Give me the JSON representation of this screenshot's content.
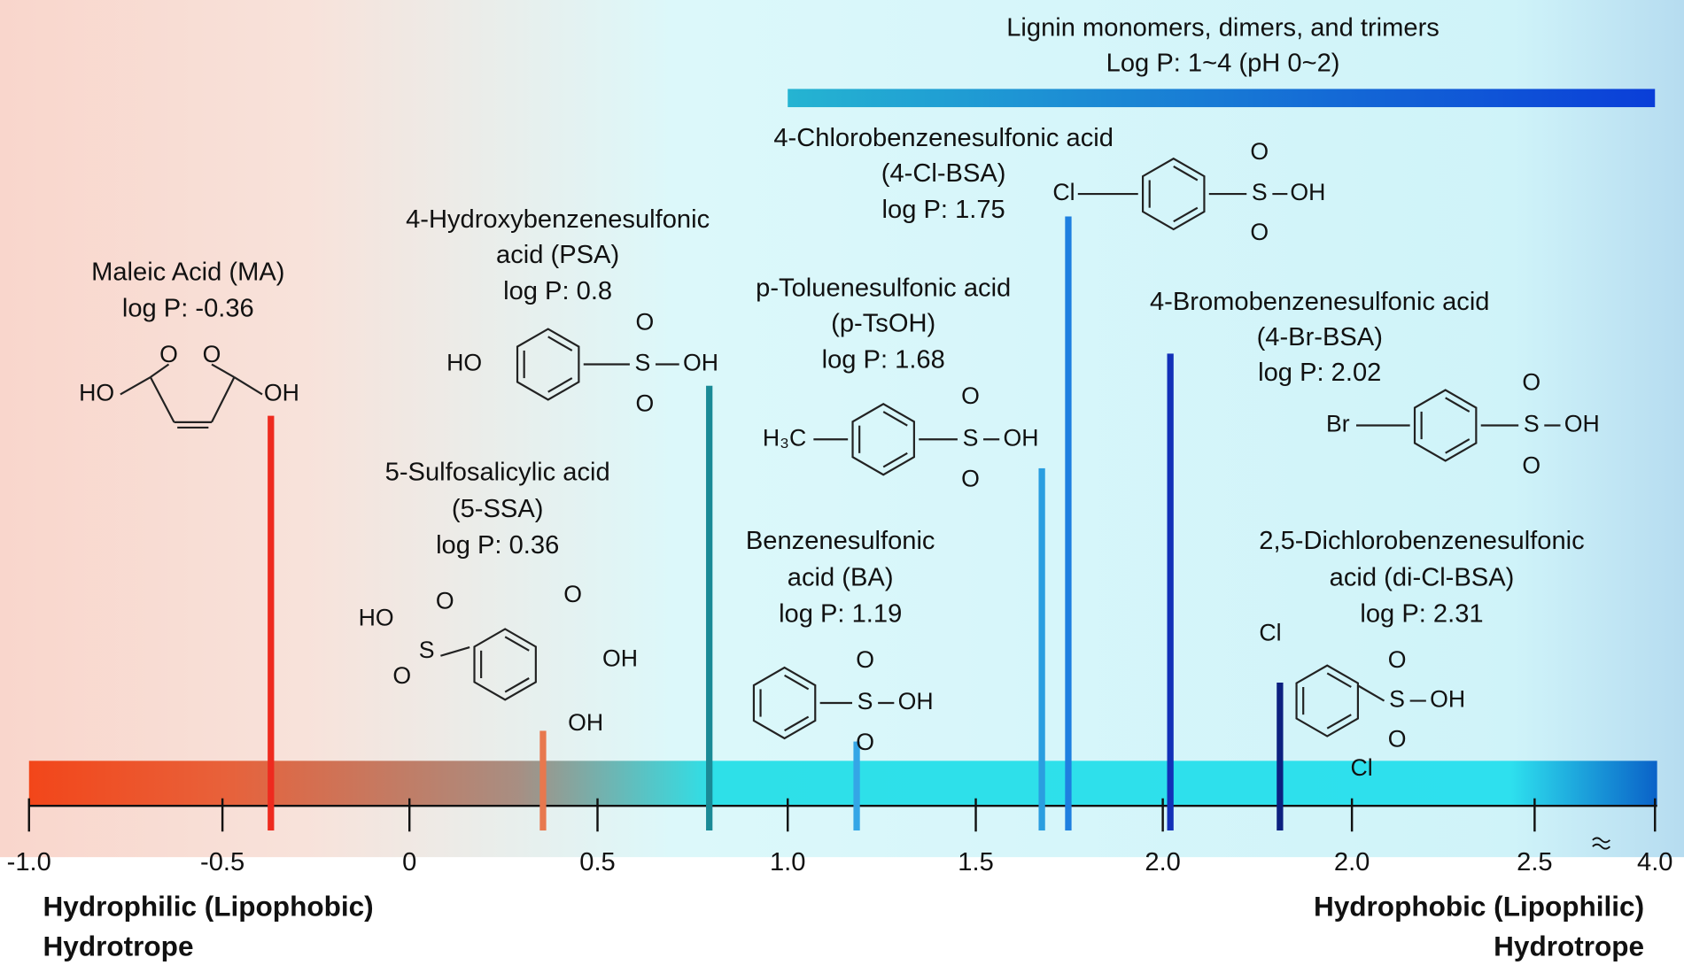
{
  "lignin": {
    "lines": [
      "Lignin monomers, dimers, and trimers",
      "Log P: 1~4  (pH 0~2)"
    ]
  },
  "compounds": [
    {
      "lines": [
        "Maleic Acid (MA)",
        "log P: -0.36"
      ],
      "log_p": -0.36,
      "color": "#ee2a1e",
      "structure": [
        "HO",
        "O",
        "O",
        "OH"
      ]
    },
    {
      "lines": [
        "5-Sulfosalicylic acid",
        "(5-SSA)",
        "log P: 0.36"
      ],
      "log_p": 0.36,
      "color": "#e8784e",
      "structure": [
        "HO",
        "S",
        "O",
        "O",
        "O",
        "OH",
        "OH"
      ]
    },
    {
      "lines": [
        "4-Hydroxybenzenesulfonic",
        "acid (PSA)",
        "log P: 0.8"
      ],
      "log_p": 0.8,
      "color": "#1a8a96",
      "structure": [
        "HO",
        "S",
        "O",
        "O",
        "OH"
      ]
    },
    {
      "lines": [
        "Benzenesulfonic",
        "acid (BA)",
        "log P: 1.19"
      ],
      "log_p": 1.19,
      "color": "#34a6e6",
      "structure": [
        "S",
        "O",
        "O",
        "OH"
      ]
    },
    {
      "lines": [
        "p-Toluenesulfonic acid",
        "(p-TsOH)",
        "log P: 1.68"
      ],
      "log_p": 1.68,
      "color": "#2a9ee0",
      "structure": [
        "H₃C",
        "S",
        "O",
        "O",
        "OH"
      ]
    },
    {
      "lines": [
        "4-Chlorobenzenesulfonic acid",
        "(4-Cl-BSA)",
        "log P: 1.75"
      ],
      "log_p": 1.75,
      "color": "#1e7fe0",
      "structure": [
        "Cl",
        "S",
        "O",
        "O",
        "OH"
      ]
    },
    {
      "lines": [
        "4-Bromobenzenesulfonic acid",
        "(4-Br-BSA)",
        "log P: 2.02"
      ],
      "log_p": 2.02,
      "color": "#1230b8",
      "structure": [
        "Br",
        "S",
        "O",
        "O",
        "OH"
      ]
    },
    {
      "lines": [
        "2,5-Dichlorobenzenesulfonic",
        "acid (di-Cl-BSA)",
        "log P: 2.31"
      ],
      "log_p": 2.31,
      "color": "#0c2080",
      "structure": [
        "Cl",
        "S",
        "O",
        "O",
        "OH",
        "Cl"
      ]
    }
  ],
  "axis": {
    "tick_labels": [
      "-1.0",
      "-0.5",
      "0",
      "0.5",
      "1.0",
      "1.5",
      "2.0",
      "2.0",
      "2.5",
      "4.0"
    ]
  },
  "footer": {
    "left": [
      "Hydrophilic (Lipophobic)",
      "Hydrotrope"
    ],
    "right": [
      "Hydrophobic (Lipophilic)",
      "Hydrotrope"
    ]
  }
}
